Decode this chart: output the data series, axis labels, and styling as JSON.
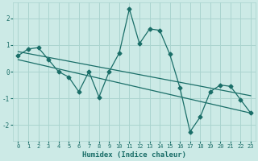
{
  "xlabel": "Humidex (Indice chaleur)",
  "xlim": [
    -0.5,
    23.5
  ],
  "ylim": [
    -2.6,
    2.6
  ],
  "yticks": [
    -2,
    -1,
    0,
    1,
    2
  ],
  "xticks": [
    0,
    1,
    2,
    3,
    4,
    5,
    6,
    7,
    8,
    9,
    10,
    11,
    12,
    13,
    14,
    15,
    16,
    17,
    18,
    19,
    20,
    21,
    22,
    23
  ],
  "bg_color": "#cceae6",
  "grid_color": "#aad4cf",
  "line_color": "#1a6e68",
  "line1_x": [
    0,
    1,
    2,
    3,
    4,
    5,
    6,
    7,
    8,
    9,
    10,
    11,
    12,
    13,
    14,
    15,
    16,
    17,
    18,
    19,
    20,
    21,
    22,
    23
  ],
  "line1_y": [
    0.6,
    0.85,
    0.9,
    0.45,
    0.0,
    -0.2,
    -0.75,
    0.0,
    -0.95,
    0.0,
    0.7,
    2.35,
    1.05,
    1.6,
    1.55,
    0.65,
    -0.6,
    -2.25,
    -1.7,
    -0.75,
    -0.5,
    -0.55,
    -1.05,
    -1.55
  ],
  "line2_x": [
    0,
    23
  ],
  "line2_y": [
    0.75,
    -0.9
  ],
  "line3_x": [
    0,
    23
  ],
  "line3_y": [
    0.45,
    -1.55
  ]
}
